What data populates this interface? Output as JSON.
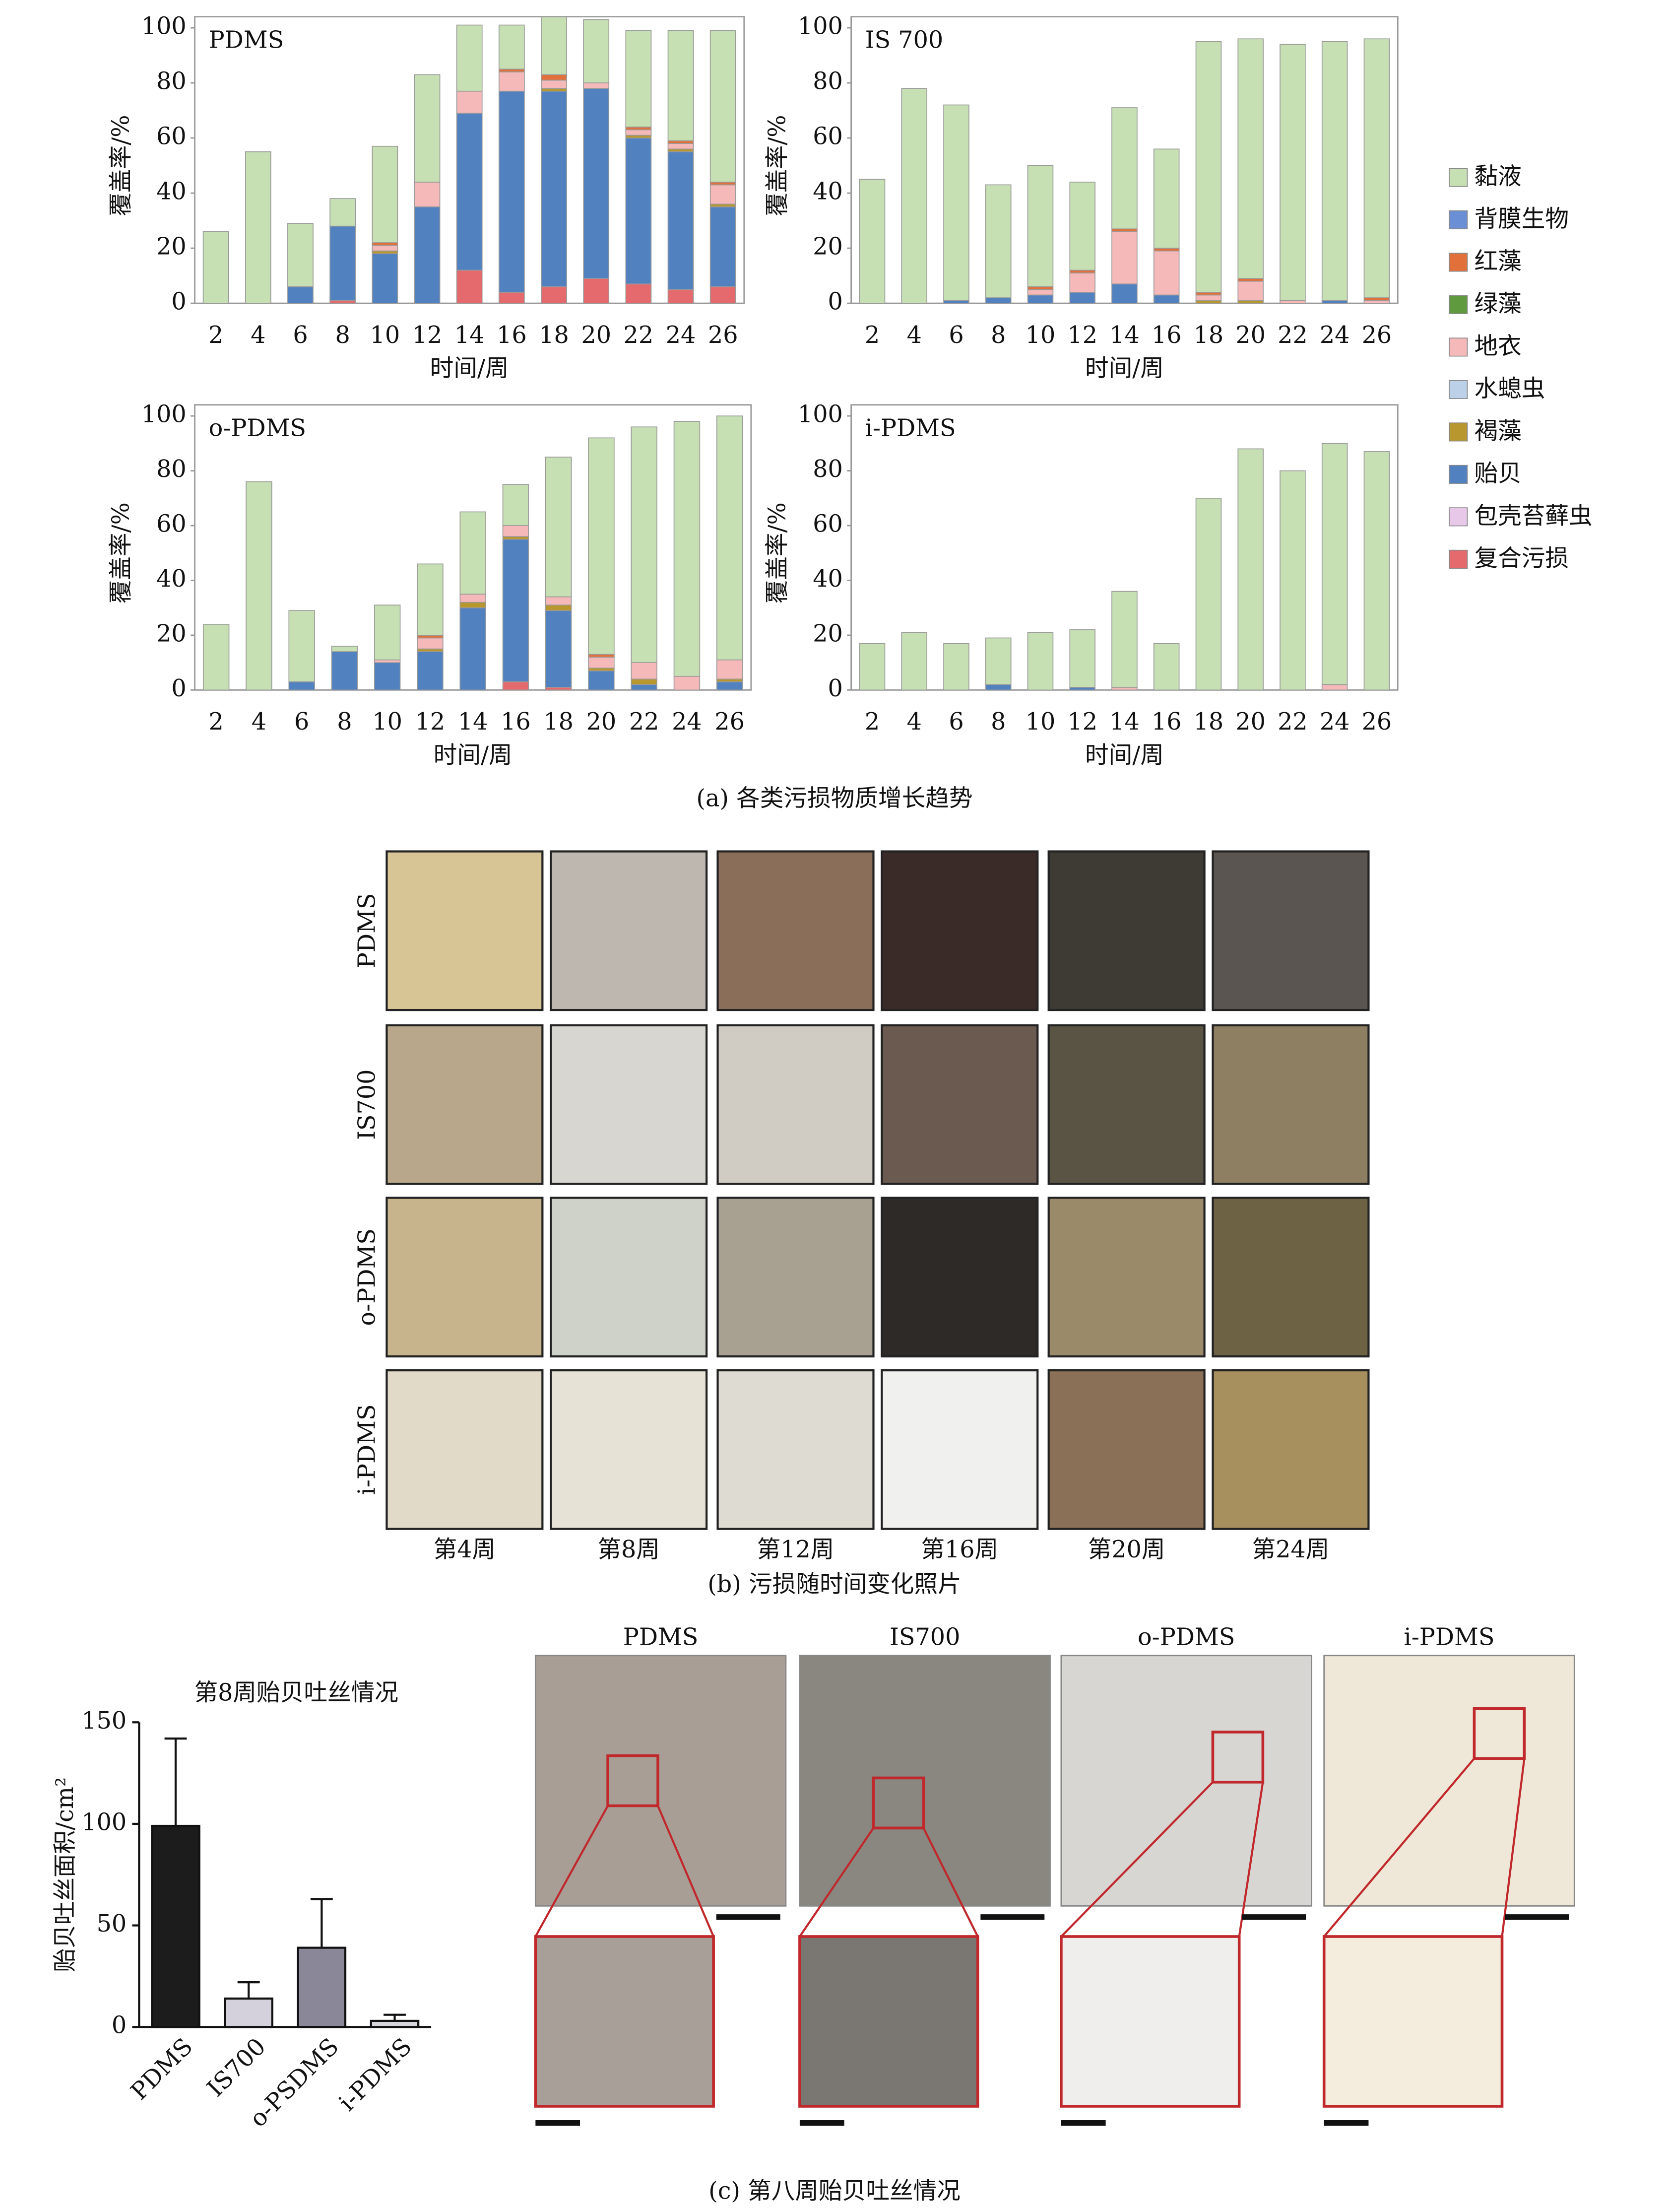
{
  "chart_data": [
    {
      "type": "stacked_bar",
      "categories": [
        "2",
        "4",
        "6",
        "8",
        "10",
        "12",
        "14",
        "16",
        "18",
        "20",
        "22",
        "24",
        "26"
      ],
      "ylim": [
        0,
        100
      ],
      "yticks": [
        0,
        20,
        40,
        60,
        80,
        100
      ],
      "xlabel": "时间/周",
      "ylabel": "覆盖率/%",
      "series": [
        {
          "name": "黏液",
          "color": "#c6e0b4"
        },
        {
          "name": "背膜生物",
          "color": "#6a8fd4"
        },
        {
          "name": "红藻",
          "color": "#e2703a"
        },
        {
          "name": "绿藻",
          "color": "#5f9b3e"
        },
        {
          "name": "地衣",
          "color": "#f5b9b9"
        },
        {
          "name": "水螅虫",
          "color": "#bcd0e8"
        },
        {
          "name": "褐藻",
          "color": "#b8972e"
        },
        {
          "name": "贻贝",
          "color": "#5281c0"
        },
        {
          "name": "包壳苔藓虫",
          "color": "#e8c8e8"
        },
        {
          "name": "复合污损",
          "color": "#e56a6e"
        }
      ],
      "panels": [
        {
          "title": "PDMS",
          "values": [
            [
              26,
              55,
              23,
              10,
              35,
              39,
              24,
              16,
              21,
              23,
              35,
              40,
              55
            ],
            [
              0,
              0,
              0,
              0,
              0,
              0,
              0,
              0,
              0,
              0,
              0,
              0,
              0
            ],
            [
              0,
              0,
              0,
              0,
              1,
              0,
              0,
              1,
              2,
              0,
              1,
              1,
              1
            ],
            [
              0,
              0,
              0,
              0,
              0,
              0,
              0,
              0,
              0,
              0,
              0,
              0,
              0
            ],
            [
              0,
              0,
              0,
              0,
              2,
              9,
              8,
              7,
              3,
              2,
              2,
              2,
              7
            ],
            [
              0,
              0,
              0,
              0,
              0,
              0,
              0,
              0,
              0,
              0,
              0,
              0,
              0
            ],
            [
              0,
              0,
              0,
              0,
              1,
              0,
              0,
              0,
              1,
              0,
              1,
              1,
              1
            ],
            [
              0,
              0,
              6,
              27,
              18,
              35,
              57,
              73,
              71,
              69,
              53,
              50,
              29
            ],
            [
              0,
              0,
              0,
              0,
              0,
              0,
              0,
              0,
              0,
              0,
              0,
              0,
              0
            ],
            [
              0,
              0,
              0,
              1,
              0,
              0,
              12,
              4,
              6,
              9,
              7,
              5,
              6
            ]
          ]
        },
        {
          "title": "IS 700",
          "values": [
            [
              45,
              78,
              71,
              41,
              44,
              32,
              44,
              36,
              91,
              87,
              93,
              94,
              94
            ],
            [
              0,
              0,
              0,
              0,
              0,
              0,
              0,
              0,
              0,
              0,
              0,
              0,
              0
            ],
            [
              0,
              0,
              0,
              0,
              1,
              1,
              1,
              1,
              1,
              1,
              0,
              0,
              1
            ],
            [
              0,
              0,
              0,
              0,
              0,
              0,
              0,
              0,
              0,
              0,
              0,
              0,
              0
            ],
            [
              0,
              0,
              0,
              0,
              2,
              7,
              19,
              16,
              2,
              7,
              1,
              0,
              1
            ],
            [
              0,
              0,
              0,
              0,
              0,
              0,
              0,
              0,
              0,
              0,
              0,
              0,
              0
            ],
            [
              0,
              0,
              0,
              0,
              0,
              0,
              0,
              0,
              1,
              1,
              0,
              0,
              0
            ],
            [
              0,
              0,
              1,
              2,
              3,
              4,
              7,
              3,
              0,
              0,
              0,
              1,
              0
            ],
            [
              0,
              0,
              0,
              0,
              0,
              0,
              0,
              0,
              0,
              0,
              0,
              0,
              0
            ],
            [
              0,
              0,
              0,
              0,
              0,
              0,
              0,
              0,
              0,
              0,
              0,
              0,
              0
            ]
          ]
        },
        {
          "title": "o-PDMS",
          "values": [
            [
              24,
              76,
              26,
              2,
              20,
              26,
              30,
              15,
              51,
              79,
              86,
              93,
              89
            ],
            [
              0,
              0,
              0,
              0,
              0,
              0,
              0,
              0,
              0,
              0,
              0,
              0,
              0
            ],
            [
              0,
              0,
              0,
              0,
              0,
              1,
              0,
              0,
              0,
              1,
              0,
              0,
              0
            ],
            [
              0,
              0,
              0,
              0,
              0,
              0,
              0,
              0,
              0,
              0,
              0,
              0,
              0
            ],
            [
              0,
              0,
              0,
              0,
              1,
              4,
              3,
              4,
              3,
              4,
              6,
              5,
              7
            ],
            [
              0,
              0,
              0,
              0,
              0,
              0,
              0,
              0,
              0,
              0,
              0,
              0,
              0
            ],
            [
              0,
              0,
              0,
              0,
              0,
              1,
              2,
              1,
              2,
              1,
              2,
              0,
              1
            ],
            [
              0,
              0,
              3,
              14,
              10,
              14,
              30,
              52,
              28,
              7,
              2,
              0,
              3
            ],
            [
              0,
              0,
              0,
              0,
              0,
              0,
              0,
              0,
              0,
              0,
              0,
              0,
              0
            ],
            [
              0,
              0,
              0,
              0,
              0,
              0,
              0,
              3,
              1,
              0,
              0,
              0,
              0
            ]
          ]
        },
        {
          "title": "i-PDMS",
          "values": [
            [
              17,
              21,
              17,
              17,
              21,
              21,
              35,
              17,
              70,
              88,
              80,
              88,
              87
            ],
            [
              0,
              0,
              0,
              0,
              0,
              0,
              0,
              0,
              0,
              0,
              0,
              0,
              0
            ],
            [
              0,
              0,
              0,
              0,
              0,
              0,
              0,
              0,
              0,
              0,
              0,
              0,
              0
            ],
            [
              0,
              0,
              0,
              0,
              0,
              0,
              0,
              0,
              0,
              0,
              0,
              0,
              0
            ],
            [
              0,
              0,
              0,
              0,
              0,
              0,
              1,
              0,
              0,
              0,
              0,
              2,
              0
            ],
            [
              0,
              0,
              0,
              0,
              0,
              0,
              0,
              0,
              0,
              0,
              0,
              0,
              0
            ],
            [
              0,
              0,
              0,
              0,
              0,
              0,
              0,
              0,
              0,
              0,
              0,
              0,
              0
            ],
            [
              0,
              0,
              0,
              2,
              0,
              1,
              0,
              0,
              0,
              0,
              0,
              0,
              0
            ],
            [
              0,
              0,
              0,
              0,
              0,
              0,
              0,
              0,
              0,
              0,
              0,
              0,
              0
            ],
            [
              0,
              0,
              0,
              0,
              0,
              0,
              0,
              0,
              0,
              0,
              0,
              0,
              0
            ]
          ]
        }
      ],
      "caption": "(a) 各类污损物质增长趋势"
    },
    {
      "type": "bar_error",
      "title": "第8周贻贝吐丝情况",
      "categories": [
        "PDMS",
        "IS700",
        "o-PSDMS",
        "i-PDMS"
      ],
      "values": [
        99,
        14,
        39,
        3
      ],
      "errors": [
        43,
        8,
        24,
        3
      ],
      "colors": [
        "#1c1c1c",
        "#d4d0dc",
        "#8a8898",
        "#d8d4dc"
      ],
      "ylim": [
        0,
        150
      ],
      "yticks": [
        0,
        50,
        100,
        150
      ],
      "ylabel": "贻贝吐丝面积/cm²"
    }
  ],
  "photos": {
    "rows": [
      "PDMS",
      "IS700",
      "o-PDMS",
      "i-PDMS"
    ],
    "columns": [
      "第4周",
      "第8周",
      "第12周",
      "第16周",
      "第20周",
      "第24周"
    ],
    "caption": "(b) 污损随时间变化照片"
  },
  "micrographs": {
    "labels": [
      "PDMS",
      "IS700",
      "o-PDMS",
      "i-PDMS"
    ],
    "caption": "(c) 第八周贻贝吐丝情况"
  }
}
